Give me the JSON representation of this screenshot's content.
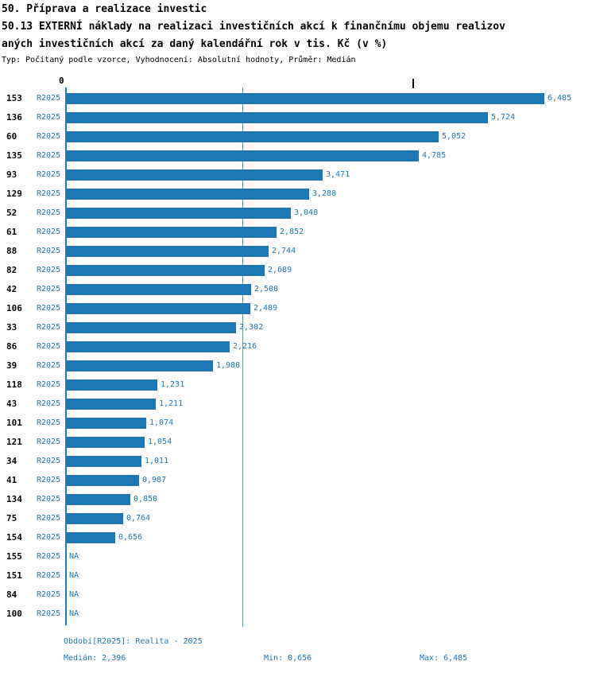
{
  "header": {
    "title_line1": "50. Příprava a realizace investic",
    "title_line2": "50.13 EXTERNÍ náklady na realizaci investičních akcí k finančnímu objemu realizov",
    "title_line3": "aných investičních akcí za daný kalendářní rok v tis. Kč (v %)",
    "subtitle": "Typ: Počítaný podle vzorce, Vyhodnocení: Absolutní hodnoty, Průměr: Medián"
  },
  "chart_data": {
    "type": "bar",
    "orientation": "horizontal",
    "title": "50.13 EXTERNÍ náklady na realizaci investičních akcí k finančnímu objemu realizovaných investičních akcí za daný kalendářní rok v tis. Kč (v %)",
    "xlabel": "",
    "ylabel": "",
    "legend": "none",
    "grid": "median line only",
    "series_label": "R2025",
    "axis_zero_label": "0",
    "xlim": [
      0,
      6.8
    ],
    "median_line_value": 2.396,
    "bar_color": "#1f77b4",
    "categories": [
      "153",
      "136",
      "60",
      "135",
      "93",
      "129",
      "52",
      "61",
      "88",
      "82",
      "42",
      "106",
      "33",
      "86",
      "39",
      "118",
      "43",
      "101",
      "121",
      "34",
      "41",
      "134",
      "75",
      "154",
      "155",
      "151",
      "84",
      "100"
    ],
    "values": [
      6.485,
      5.724,
      5.052,
      4.785,
      3.471,
      3.288,
      3.048,
      2.852,
      2.744,
      2.689,
      2.508,
      2.489,
      2.302,
      2.216,
      1.988,
      1.231,
      1.211,
      1.074,
      1.054,
      1.011,
      0.987,
      0.858,
      0.764,
      0.656,
      null,
      null,
      null,
      null
    ],
    "value_labels": [
      "6,485",
      "5,724",
      "5,052",
      "4,785",
      "3,471",
      "3,288",
      "3,048",
      "2,852",
      "2,744",
      "2,689",
      "2,508",
      "2,489",
      "2,302",
      "2,216",
      "1,988",
      "1,231",
      "1,211",
      "1,074",
      "1,054",
      "1,011",
      "0,987",
      "0,858",
      "0,764",
      "0,656",
      "NA",
      "NA",
      "NA",
      "NA"
    ]
  },
  "footer": {
    "period": "Období[R2025]: Realita - 2025",
    "median": "Medián: 2,396",
    "min": "Min: 0,656",
    "max": "Max: 6,485"
  }
}
